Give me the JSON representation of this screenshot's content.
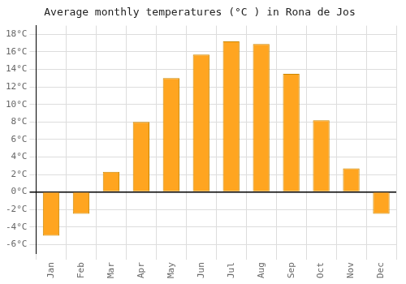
{
  "chart_data": {
    "type": "bar",
    "title": "Average monthly temperatures (°C ) in Rona de Jos",
    "categories": [
      "Jan",
      "Feb",
      "Mar",
      "Apr",
      "May",
      "Jun",
      "Jul",
      "Aug",
      "Sep",
      "Oct",
      "Nov",
      "Dec"
    ],
    "values": [
      -5.0,
      -2.5,
      2.3,
      8.0,
      13.0,
      15.7,
      17.2,
      16.9,
      13.5,
      8.2,
      2.7,
      -2.5
    ],
    "color": "#FFA520",
    "ylim": [
      -7,
      19
    ],
    "yticks": [
      {
        "value": -6,
        "label": "-6°C"
      },
      {
        "value": -4,
        "label": "-4°C"
      },
      {
        "value": -2,
        "label": "-2°C"
      },
      {
        "value": 0,
        "label": "0°C"
      },
      {
        "value": 2,
        "label": "2°C"
      },
      {
        "value": 4,
        "label": "4°C"
      },
      {
        "value": 6,
        "label": "6°C"
      },
      {
        "value": 8,
        "label": "8°C"
      },
      {
        "value": 10,
        "label": "10°C"
      },
      {
        "value": 12,
        "label": "12°C"
      },
      {
        "value": 14,
        "label": "14°C"
      },
      {
        "value": 16,
        "label": "16°C"
      },
      {
        "value": 18,
        "label": "18°C"
      }
    ],
    "grid": true
  }
}
